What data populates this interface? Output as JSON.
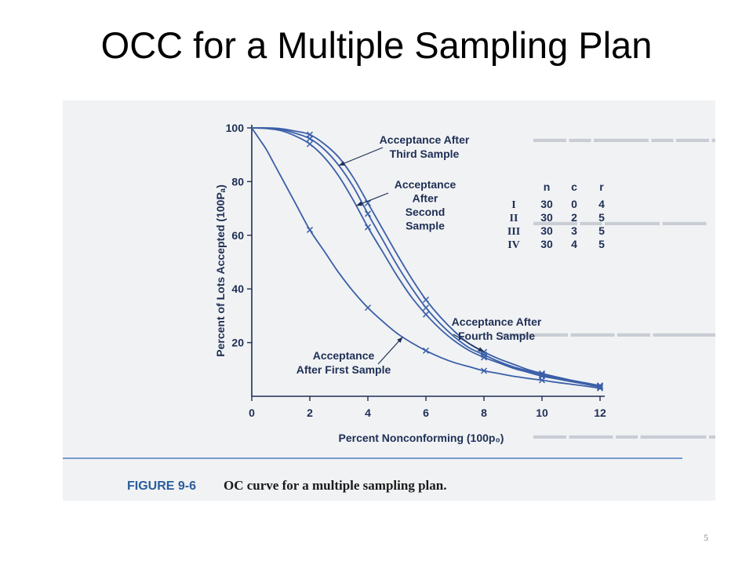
{
  "slide": {
    "title": "OCC for a Multiple Sampling Plan",
    "page_number": "5"
  },
  "figure": {
    "label": "FIGURE 9-6",
    "caption": "OC curve for a multiple sampling plan."
  },
  "table": {
    "headers": [
      "n",
      "c",
      "r"
    ],
    "rows": [
      {
        "label": "I",
        "n": "30",
        "c": "0",
        "r": "4"
      },
      {
        "label": "II",
        "n": "30",
        "c": "2",
        "r": "5"
      },
      {
        "label": "III",
        "n": "30",
        "c": "3",
        "r": "5"
      },
      {
        "label": "IV",
        "n": "30",
        "c": "4",
        "r": "5"
      }
    ]
  },
  "colors": {
    "curve": "#3a5fa8",
    "text": "#1e2f55",
    "caption_label": "#2a5d9c",
    "rule": "#4a7fc4"
  },
  "chart_data": {
    "type": "line",
    "xlabel": "Percent Nonconforming (100p₀)",
    "ylabel": "Percent of Lots Accepted (100Pₐ)",
    "xlim": [
      0,
      12
    ],
    "ylim": [
      0,
      100
    ],
    "xticks": [
      "0",
      "2",
      "4",
      "6",
      "8",
      "10",
      "12"
    ],
    "yticks": [
      "20",
      "40",
      "60",
      "80",
      "100"
    ],
    "series": [
      {
        "name": "Acceptance After First Sample",
        "x": [
          0,
          0.25,
          0.5,
          0.75,
          1,
          1.5,
          2,
          2.5,
          3,
          3.5,
          4,
          4.5,
          5,
          5.5,
          6,
          6.5,
          7,
          7.5,
          8,
          8.5,
          9,
          9.5,
          10,
          10.5,
          11,
          11.5,
          12
        ],
        "y": [
          100,
          96,
          92,
          87,
          82,
          72,
          62,
          54,
          46,
          39,
          33,
          28,
          23.5,
          20,
          17,
          14.5,
          12.5,
          11,
          9.5,
          8.5,
          7.5,
          6.7,
          6,
          5.2,
          4.5,
          3.8,
          3
        ]
      },
      {
        "name": "Acceptance After Second Sample",
        "x": [
          0,
          0.5,
          1,
          1.5,
          2,
          2.5,
          3,
          3.5,
          4,
          4.5,
          5,
          5.5,
          6,
          6.5,
          7,
          7.5,
          8,
          8.5,
          9,
          9.5,
          10,
          10.5,
          11,
          11.5,
          12
        ],
        "y": [
          100,
          99.8,
          99,
          97,
          94,
          89,
          82,
          73,
          63,
          54,
          45,
          37,
          30.5,
          25,
          20.5,
          17,
          14.5,
          12.5,
          10.5,
          9,
          7.5,
          6.5,
          5.5,
          4.5,
          3.5
        ]
      },
      {
        "name": "Acceptance After Third Sample",
        "x": [
          0,
          0.5,
          1,
          1.5,
          2,
          2.5,
          3,
          3.5,
          4,
          4.5,
          5,
          5.5,
          6,
          6.5,
          7,
          7.5,
          8,
          8.5,
          9,
          9.5,
          10,
          10.5,
          11,
          11.5,
          12
        ],
        "y": [
          100,
          99.9,
          99.5,
          98,
          96,
          92,
          86,
          78,
          68,
          58.5,
          49,
          40.5,
          33,
          27,
          22,
          18,
          15.5,
          13,
          11,
          9.5,
          8,
          6.8,
          5.7,
          4.7,
          3.8
        ]
      },
      {
        "name": "Acceptance After Fourth Sample",
        "x": [
          0,
          0.5,
          1,
          1.5,
          2,
          2.5,
          3,
          3.5,
          4,
          4.5,
          5,
          5.5,
          6,
          6.5,
          7,
          7.5,
          8,
          8.5,
          9,
          9.5,
          10,
          10.5,
          11,
          11.5,
          12
        ],
        "y": [
          100,
          100,
          99.7,
          98.8,
          97.5,
          94,
          89,
          81.5,
          72,
          62.5,
          53,
          44,
          36,
          29.5,
          24,
          19.5,
          16.5,
          14,
          12,
          10,
          8.5,
          7.2,
          6,
          5,
          4
        ]
      }
    ],
    "markers": [
      {
        "series": "Acceptance After First Sample",
        "x": [
          2,
          4,
          6,
          8,
          10,
          12
        ],
        "y": [
          62,
          33,
          17,
          9.5,
          6,
          3
        ]
      },
      {
        "series": "Acceptance After Second Sample",
        "x": [
          2,
          4,
          6,
          8,
          10,
          12
        ],
        "y": [
          94,
          63,
          30.5,
          14.5,
          7.5,
          3.5
        ]
      },
      {
        "series": "Acceptance After Third Sample",
        "x": [
          2,
          4,
          6,
          8,
          10,
          12
        ],
        "y": [
          96,
          68,
          33,
          15.5,
          8,
          3.8
        ]
      },
      {
        "series": "Acceptance After Fourth Sample",
        "x": [
          2,
          4,
          6,
          8,
          10,
          12
        ],
        "y": [
          97.5,
          72,
          36,
          16.5,
          8.5,
          4
        ]
      }
    ],
    "annotations": [
      {
        "lines": [
          "Acceptance After",
          "Third Sample"
        ],
        "target_series": "Acceptance After Third Sample"
      },
      {
        "lines": [
          "Acceptance",
          "After",
          "Second",
          "Sample"
        ],
        "target_series": "Acceptance After Second Sample"
      },
      {
        "lines": [
          "Acceptance After",
          "Fourth Sample"
        ],
        "target_series": "Acceptance After Fourth Sample"
      },
      {
        "lines": [
          "Acceptance",
          "After First Sample"
        ],
        "target_series": "Acceptance After First Sample"
      }
    ],
    "grid": false
  }
}
